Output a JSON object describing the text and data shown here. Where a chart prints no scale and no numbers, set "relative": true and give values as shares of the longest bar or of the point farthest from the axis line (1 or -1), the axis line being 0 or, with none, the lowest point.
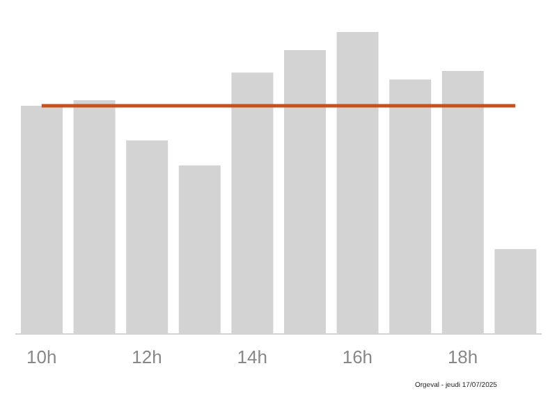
{
  "chart_data": {
    "type": "bar",
    "relative": true,
    "categories": [
      "10h",
      null,
      "12h",
      null,
      "14h",
      null,
      "16h",
      null,
      "18h",
      null
    ],
    "values": [
      0.756,
      0.774,
      0.641,
      0.558,
      0.866,
      0.94,
      1,
      0.843,
      0.871,
      0.281
    ],
    "color": "#d3d3d3",
    "ref_lines": [
      {
        "axis": "y",
        "value": 0.756,
        "color": "#c8501e"
      }
    ],
    "annotations": [
      "Orgeval - jeudi 17/07/2025"
    ],
    "grid": false,
    "legend": false
  }
}
